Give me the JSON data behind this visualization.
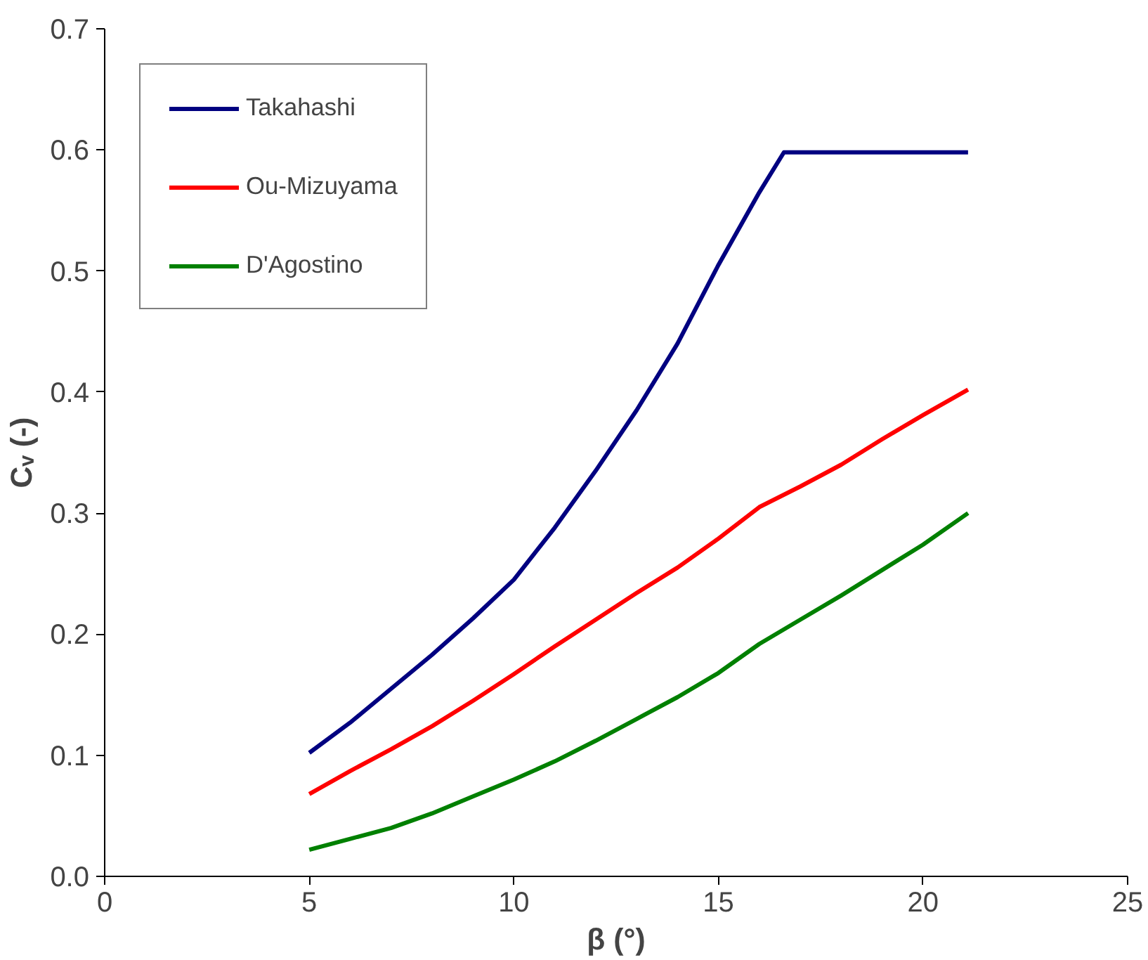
{
  "chart_data": {
    "type": "line",
    "xlabel": "β (°)",
    "ylabel": "Cᵥ (-)",
    "xlim": [
      0,
      25
    ],
    "xticks": [
      0,
      5,
      10,
      15,
      20,
      25
    ],
    "ylim": [
      0.0,
      0.7
    ],
    "yticks": [
      {
        "value": 0.0,
        "label": "0.0"
      },
      0.1,
      0.2,
      0.3,
      0.4,
      0.5,
      0.6,
      0.7
    ],
    "grid": false,
    "legend": "top left",
    "marker": "none",
    "line_style": "solid",
    "series": [
      {
        "name": "Takahashi",
        "color": "#000080",
        "x": [
          5,
          6,
          7,
          8,
          9,
          10,
          11,
          12,
          13,
          14,
          15,
          16,
          16.6,
          18,
          19,
          20,
          21.1
        ],
        "values": [
          0.102,
          0.127,
          0.155,
          0.183,
          0.213,
          0.245,
          0.288,
          0.335,
          0.385,
          0.44,
          0.505,
          0.565,
          0.598,
          0.598,
          0.598,
          0.598,
          0.598
        ]
      },
      {
        "name": "Ou-Mizuyama",
        "color": "#ff0000",
        "x": [
          5,
          6,
          7,
          8,
          9,
          10,
          11,
          12,
          13,
          14,
          15,
          16,
          17,
          18,
          19,
          20,
          21.1
        ],
        "values": [
          0.068,
          0.087,
          0.105,
          0.124,
          0.145,
          0.167,
          0.19,
          0.212,
          0.234,
          0.255,
          0.279,
          0.305,
          0.322,
          0.34,
          0.361,
          0.381,
          0.402
        ]
      },
      {
        "name": "D'Agostino",
        "color": "#008000",
        "x": [
          5,
          6,
          7,
          8,
          9,
          10,
          11,
          12,
          13,
          14,
          15,
          16,
          17,
          18,
          19,
          20,
          21.1
        ],
        "values": [
          0.022,
          0.031,
          0.04,
          0.052,
          0.066,
          0.08,
          0.095,
          0.112,
          0.13,
          0.148,
          0.168,
          0.192,
          0.212,
          0.232,
          0.253,
          0.274,
          0.3
        ]
      }
    ]
  }
}
